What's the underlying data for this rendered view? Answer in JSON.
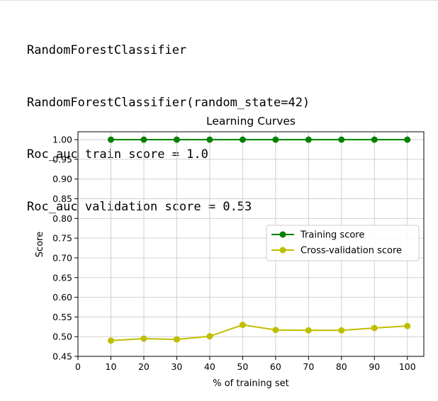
{
  "output": {
    "lines": [
      "RandomForestClassifier",
      "RandomForestClassifier(random_state=42)",
      "Roc_auc train score = 1.0",
      "Roc_auc validation score = 0.53"
    ]
  },
  "chart_data": {
    "type": "line",
    "title": "Learning Curves",
    "xlabel": "% of training set",
    "ylabel": "Score",
    "xlim": [
      0,
      105
    ],
    "ylim": [
      0.45,
      1.02
    ],
    "x_ticks": [
      0,
      10,
      20,
      30,
      40,
      50,
      60,
      70,
      80,
      90,
      100
    ],
    "y_ticks": [
      0.45,
      0.5,
      0.55,
      0.6,
      0.65,
      0.7,
      0.75,
      0.8,
      0.85,
      0.9,
      0.95,
      1.0
    ],
    "grid": true,
    "legend_position": "center-right",
    "x": [
      10,
      20,
      30,
      40,
      50,
      60,
      70,
      80,
      90,
      100
    ],
    "series": [
      {
        "name": "Training score",
        "color": "#008000",
        "values": [
          1.0,
          1.0,
          1.0,
          1.0,
          1.0,
          1.0,
          1.0,
          1.0,
          1.0,
          1.0
        ]
      },
      {
        "name": "Cross-validation score",
        "color": "#bfbf00",
        "values": [
          0.49,
          0.495,
          0.493,
          0.501,
          0.53,
          0.517,
          0.516,
          0.516,
          0.522,
          0.527
        ]
      }
    ]
  }
}
